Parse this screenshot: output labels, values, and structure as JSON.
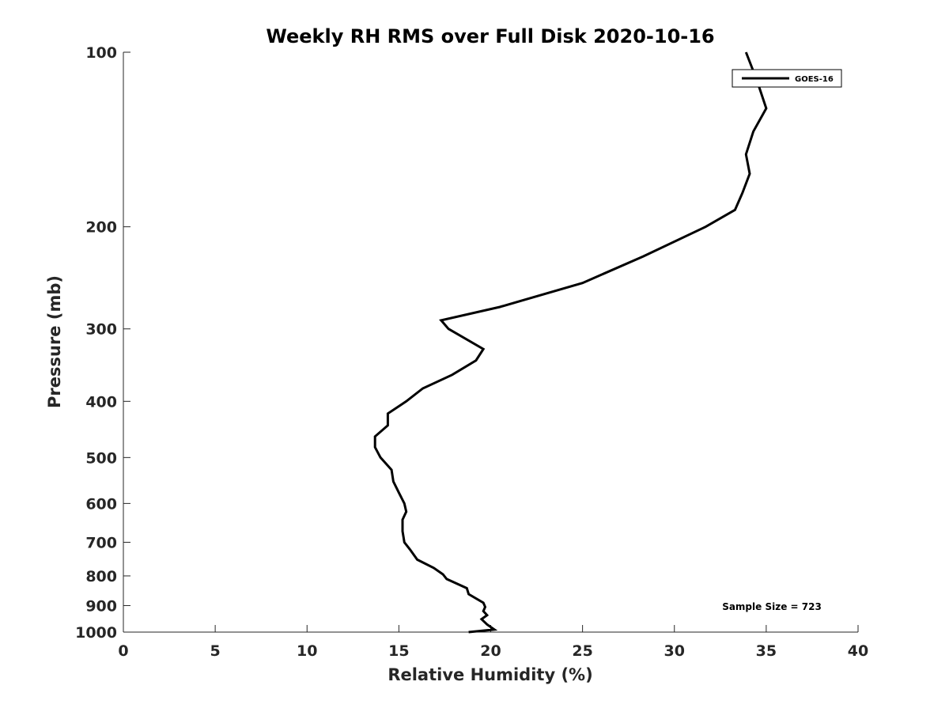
{
  "chart_data": {
    "type": "line",
    "title": "Weekly RH RMS over Full Disk 2020-10-16",
    "xlabel": "Relative Humidity (%)",
    "ylabel": "Pressure (mb)",
    "xlim": [
      0,
      40
    ],
    "ylim": [
      100,
      1000
    ],
    "yscale": "log",
    "y_reversed": true,
    "xticks": [
      0,
      5,
      10,
      15,
      20,
      25,
      30,
      35,
      40
    ],
    "yticks": [
      100,
      200,
      300,
      400,
      500,
      600,
      700,
      800,
      900,
      1000
    ],
    "grid": false,
    "legend_placement": "top-right",
    "annotation": "Sample Size = 723",
    "series": [
      {
        "name": "GOES-16",
        "color": "#000000",
        "points": [
          [
            33.9,
            100
          ],
          [
            34.5,
            112
          ],
          [
            35.0,
            125
          ],
          [
            34.3,
            137
          ],
          [
            33.9,
            150
          ],
          [
            34.1,
            162
          ],
          [
            33.7,
            175
          ],
          [
            33.3,
            187
          ],
          [
            31.7,
            200
          ],
          [
            28.3,
            225
          ],
          [
            25.0,
            250
          ],
          [
            20.5,
            275
          ],
          [
            17.3,
            290
          ],
          [
            17.7,
            300
          ],
          [
            19.6,
            325
          ],
          [
            19.2,
            340
          ],
          [
            17.9,
            360
          ],
          [
            16.3,
            380
          ],
          [
            15.4,
            400
          ],
          [
            14.4,
            420
          ],
          [
            14.4,
            440
          ],
          [
            13.7,
            460
          ],
          [
            13.7,
            480
          ],
          [
            14.0,
            500
          ],
          [
            14.6,
            525
          ],
          [
            14.7,
            550
          ],
          [
            15.0,
            575
          ],
          [
            15.3,
            600
          ],
          [
            15.4,
            620
          ],
          [
            15.2,
            640
          ],
          [
            15.2,
            670
          ],
          [
            15.3,
            700
          ],
          [
            15.6,
            720
          ],
          [
            16.0,
            750
          ],
          [
            16.9,
            775
          ],
          [
            17.4,
            795
          ],
          [
            17.6,
            810
          ],
          [
            18.7,
            840
          ],
          [
            18.8,
            860
          ],
          [
            19.6,
            890
          ],
          [
            19.7,
            905
          ],
          [
            19.6,
            920
          ],
          [
            19.8,
            935
          ],
          [
            19.5,
            950
          ],
          [
            19.8,
            970
          ],
          [
            20.2,
            990
          ],
          [
            18.8,
            1000
          ]
        ]
      }
    ]
  }
}
